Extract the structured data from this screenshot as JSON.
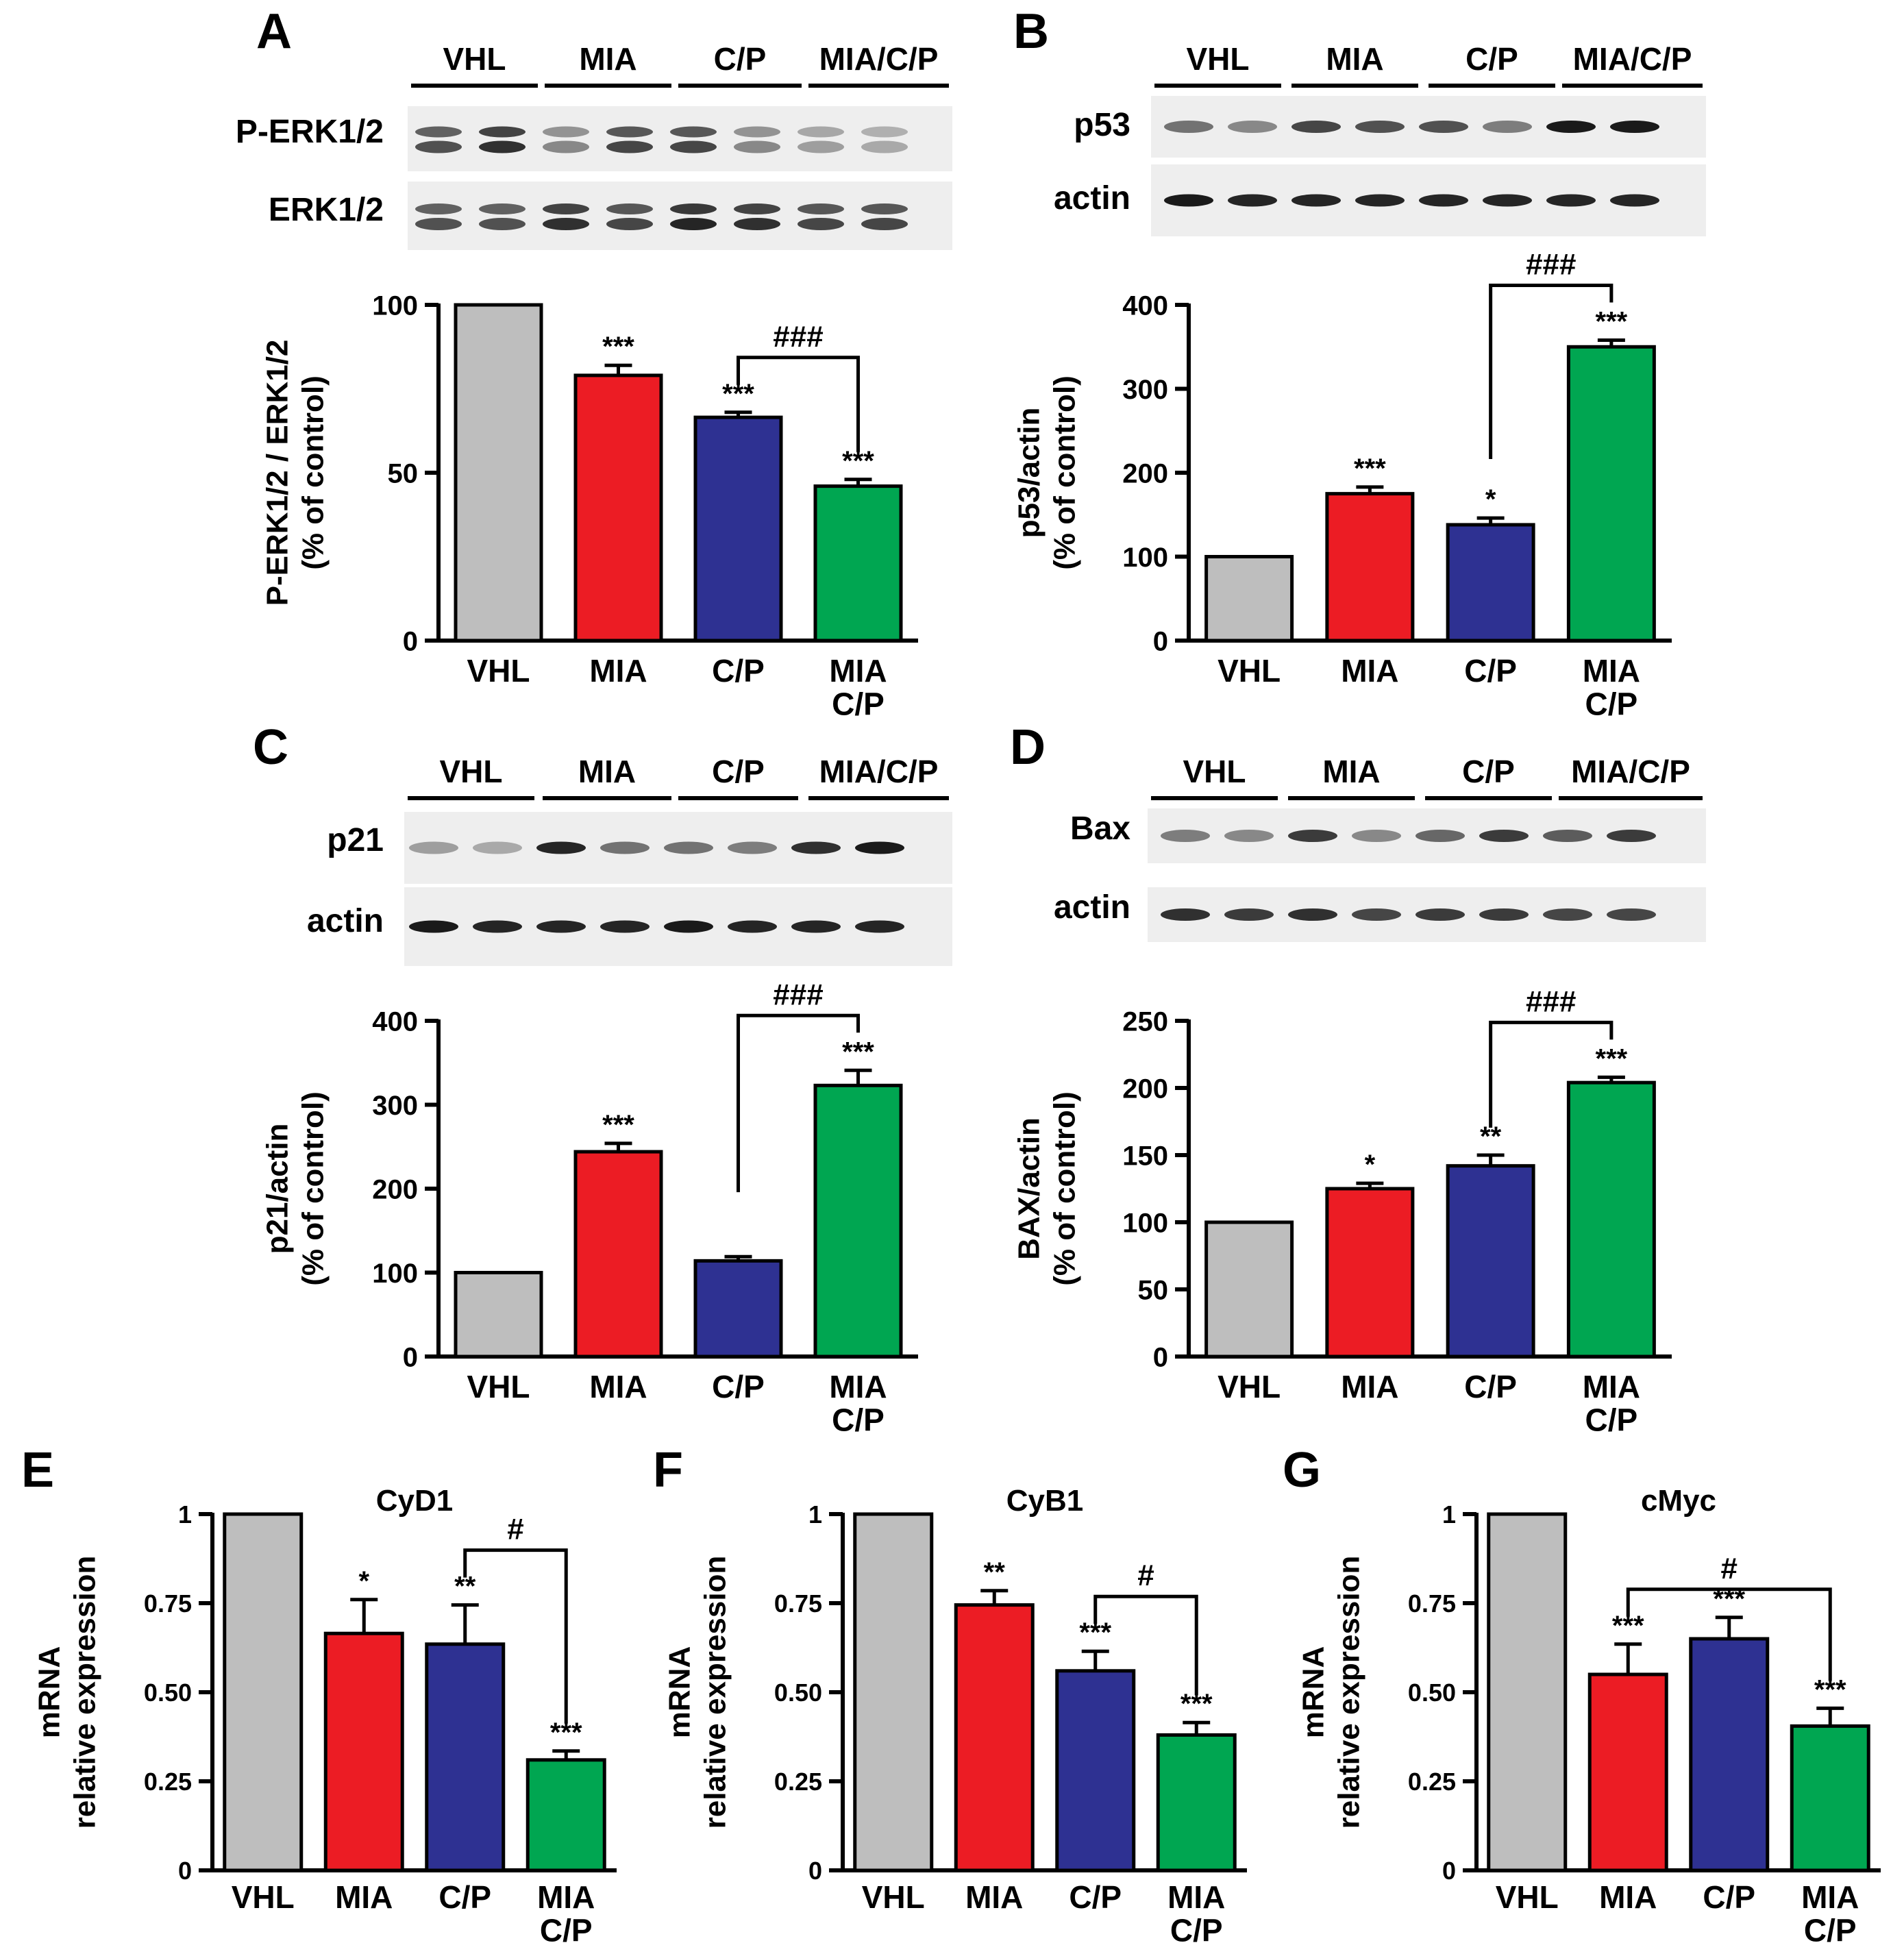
{
  "colors": {
    "VHL": "#bebebe",
    "MIA": "#ec1c24",
    "C/P": "#2e3192",
    "MIA/C/P": "#00a651"
  },
  "panels": [
    {
      "id": "A",
      "letter": "A",
      "blot": {
        "lane_groups": [
          "VHL",
          "MIA",
          "C/P",
          "MIA/C/P"
        ],
        "rows": [
          {
            "label": "P-ERK1/2",
            "intensities": [
              0.7,
              0.85,
              0.45,
              0.75,
              0.75,
              0.45,
              0.35,
              0.3
            ],
            "double": true
          },
          {
            "label": "ERK1/2",
            "intensities": [
              0.7,
              0.7,
              0.85,
              0.75,
              0.9,
              0.85,
              0.75,
              0.75
            ],
            "double": true
          }
        ]
      },
      "chart_data": {
        "type": "bar",
        "categories": [
          "VHL",
          "MIA",
          "C/P",
          "MIA C/P"
        ],
        "values": [
          100,
          79,
          66.5,
          46
        ],
        "errors": [
          0,
          3,
          1.5,
          2
        ],
        "significance": [
          "",
          "***",
          "***",
          "***"
        ],
        "ylabel_line1": "P-ERK1/2 / ERK1/2",
        "ylabel_line2": "(% of control)",
        "ylim": [
          0,
          100
        ],
        "yticks": [
          0,
          50,
          100
        ],
        "ytick_labels": [
          "0",
          "50",
          "100"
        ],
        "comparison": {
          "from": 2,
          "to": 3,
          "label": "###"
        }
      }
    },
    {
      "id": "B",
      "letter": "B",
      "blot": {
        "lane_groups": [
          "VHL",
          "MIA",
          "C/P",
          "MIA/C/P"
        ],
        "rows": [
          {
            "label": "p53",
            "intensities": [
              0.55,
              0.45,
              0.75,
              0.7,
              0.7,
              0.5,
              0.95,
              0.95
            ],
            "double": false
          },
          {
            "label": "actin",
            "intensities": [
              0.95,
              0.9,
              0.9,
              0.9,
              0.9,
              0.9,
              0.9,
              0.9
            ],
            "double": false
          }
        ]
      },
      "chart_data": {
        "type": "bar",
        "categories": [
          "VHL",
          "MIA",
          "C/P",
          "MIA C/P"
        ],
        "values": [
          100,
          175,
          138,
          350
        ],
        "errors": [
          0,
          8,
          8,
          8
        ],
        "significance": [
          "",
          "***",
          "*",
          "***"
        ],
        "ylabel_line1": "p53/actin",
        "ylabel_line2": "(% of control)",
        "ylim": [
          0,
          400
        ],
        "yticks": [
          0,
          100,
          200,
          300,
          400
        ],
        "ytick_labels": [
          "0",
          "100",
          "200",
          "300",
          "400"
        ],
        "comparison": {
          "from": 2,
          "to": 3,
          "label": "###"
        }
      }
    },
    {
      "id": "C",
      "letter": "C",
      "blot": {
        "lane_groups": [
          "VHL",
          "MIA",
          "C/P",
          "MIA/C/P"
        ],
        "rows": [
          {
            "label": "p21",
            "intensities": [
              0.35,
              0.3,
              0.9,
              0.55,
              0.55,
              0.5,
              0.85,
              0.95
            ],
            "double": false
          },
          {
            "label": "actin",
            "intensities": [
              0.95,
              0.9,
              0.9,
              0.9,
              0.95,
              0.9,
              0.9,
              0.9
            ],
            "double": false
          }
        ]
      },
      "chart_data": {
        "type": "bar",
        "categories": [
          "VHL",
          "MIA",
          "C/P",
          "MIA C/P"
        ],
        "values": [
          100,
          244,
          114,
          323
        ],
        "errors": [
          0,
          10,
          5,
          18
        ],
        "significance": [
          "",
          "***",
          "",
          "***"
        ],
        "ylabel_line1": "p21/actin",
        "ylabel_line2": "(% of control)",
        "ylim": [
          0,
          400
        ],
        "yticks": [
          0,
          100,
          200,
          300,
          400
        ],
        "ytick_labels": [
          "0",
          "100",
          "200",
          "300",
          "400"
        ],
        "comparison": {
          "from": 2,
          "to": 3,
          "label": "###"
        }
      }
    },
    {
      "id": "D",
      "letter": "D",
      "blot": {
        "lane_groups": [
          "VHL",
          "MIA",
          "C/P",
          "MIA/C/P"
        ],
        "rows": [
          {
            "label": "Bax",
            "intensities": [
              0.5,
              0.45,
              0.8,
              0.45,
              0.6,
              0.8,
              0.65,
              0.8
            ],
            "double": false
          },
          {
            "label": "actin",
            "intensities": [
              0.85,
              0.8,
              0.85,
              0.75,
              0.8,
              0.8,
              0.75,
              0.75
            ],
            "double": false
          }
        ]
      },
      "chart_data": {
        "type": "bar",
        "categories": [
          "VHL",
          "MIA",
          "C/P",
          "MIA C/P"
        ],
        "values": [
          100,
          125,
          142,
          204
        ],
        "errors": [
          0,
          4,
          8,
          4
        ],
        "significance": [
          "",
          "*",
          "**",
          "***"
        ],
        "ylabel_line1": "BAX/actin",
        "ylabel_line2": "(% of control)",
        "ylim": [
          0,
          250
        ],
        "yticks": [
          0,
          50,
          100,
          150,
          200,
          250
        ],
        "ytick_labels": [
          "0",
          "50",
          "100",
          "150",
          "200",
          "250"
        ],
        "comparison": {
          "from": 2,
          "to": 3,
          "label": "###"
        }
      }
    },
    {
      "id": "E",
      "letter": "E",
      "chart_data": {
        "type": "bar",
        "title": "CyD1",
        "categories": [
          "VHL",
          "MIA",
          "C/P",
          "MIA C/P"
        ],
        "values": [
          1,
          0.665,
          0.635,
          0.31
        ],
        "errors": [
          0,
          0.095,
          0.11,
          0.025
        ],
        "significance": [
          "",
          "*",
          "**",
          "***"
        ],
        "ylabel_line1": "mRNA",
        "ylabel_line2": "relative expression",
        "ylim": [
          0,
          1
        ],
        "yticks": [
          0,
          0.25,
          0.5,
          0.75,
          1
        ],
        "ytick_labels": [
          "0",
          "0.25",
          "0.50",
          "0.75",
          "1"
        ],
        "comparison": {
          "from": 2,
          "to": 3,
          "label": "#"
        }
      }
    },
    {
      "id": "F",
      "letter": "F",
      "chart_data": {
        "type": "bar",
        "title": "CyB1",
        "categories": [
          "VHL",
          "MIA",
          "C/P",
          "MIA C/P"
        ],
        "values": [
          1,
          0.745,
          0.56,
          0.38
        ],
        "errors": [
          0,
          0.04,
          0.055,
          0.035
        ],
        "significance": [
          "",
          "**",
          "***",
          "***"
        ],
        "ylabel_line1": "mRNA",
        "ylabel_line2": "relative expression",
        "ylim": [
          0,
          1
        ],
        "yticks": [
          0,
          0.25,
          0.5,
          0.75,
          1
        ],
        "ytick_labels": [
          "0",
          "0.25",
          "0.50",
          "0.75",
          "1"
        ],
        "comparison": {
          "from": 2,
          "to": 3,
          "label": "#"
        }
      }
    },
    {
      "id": "G",
      "letter": "G",
      "chart_data": {
        "type": "bar",
        "title": "cMyc",
        "categories": [
          "VHL",
          "MIA",
          "C/P",
          "MIA C/P"
        ],
        "values": [
          1,
          0.55,
          0.65,
          0.405
        ],
        "errors": [
          0,
          0.085,
          0.06,
          0.05
        ],
        "significance": [
          "",
          "***",
          "***",
          "***"
        ],
        "ylabel_line1": "mRNA",
        "ylabel_line2": "relative expression",
        "ylim": [
          0,
          1
        ],
        "yticks": [
          0,
          0.25,
          0.5,
          0.75,
          1
        ],
        "ytick_labels": [
          "0",
          "0.25",
          "0.50",
          "0.75",
          "1"
        ],
        "comparison": {
          "from": 1,
          "to": 3,
          "label": "#"
        }
      }
    }
  ]
}
